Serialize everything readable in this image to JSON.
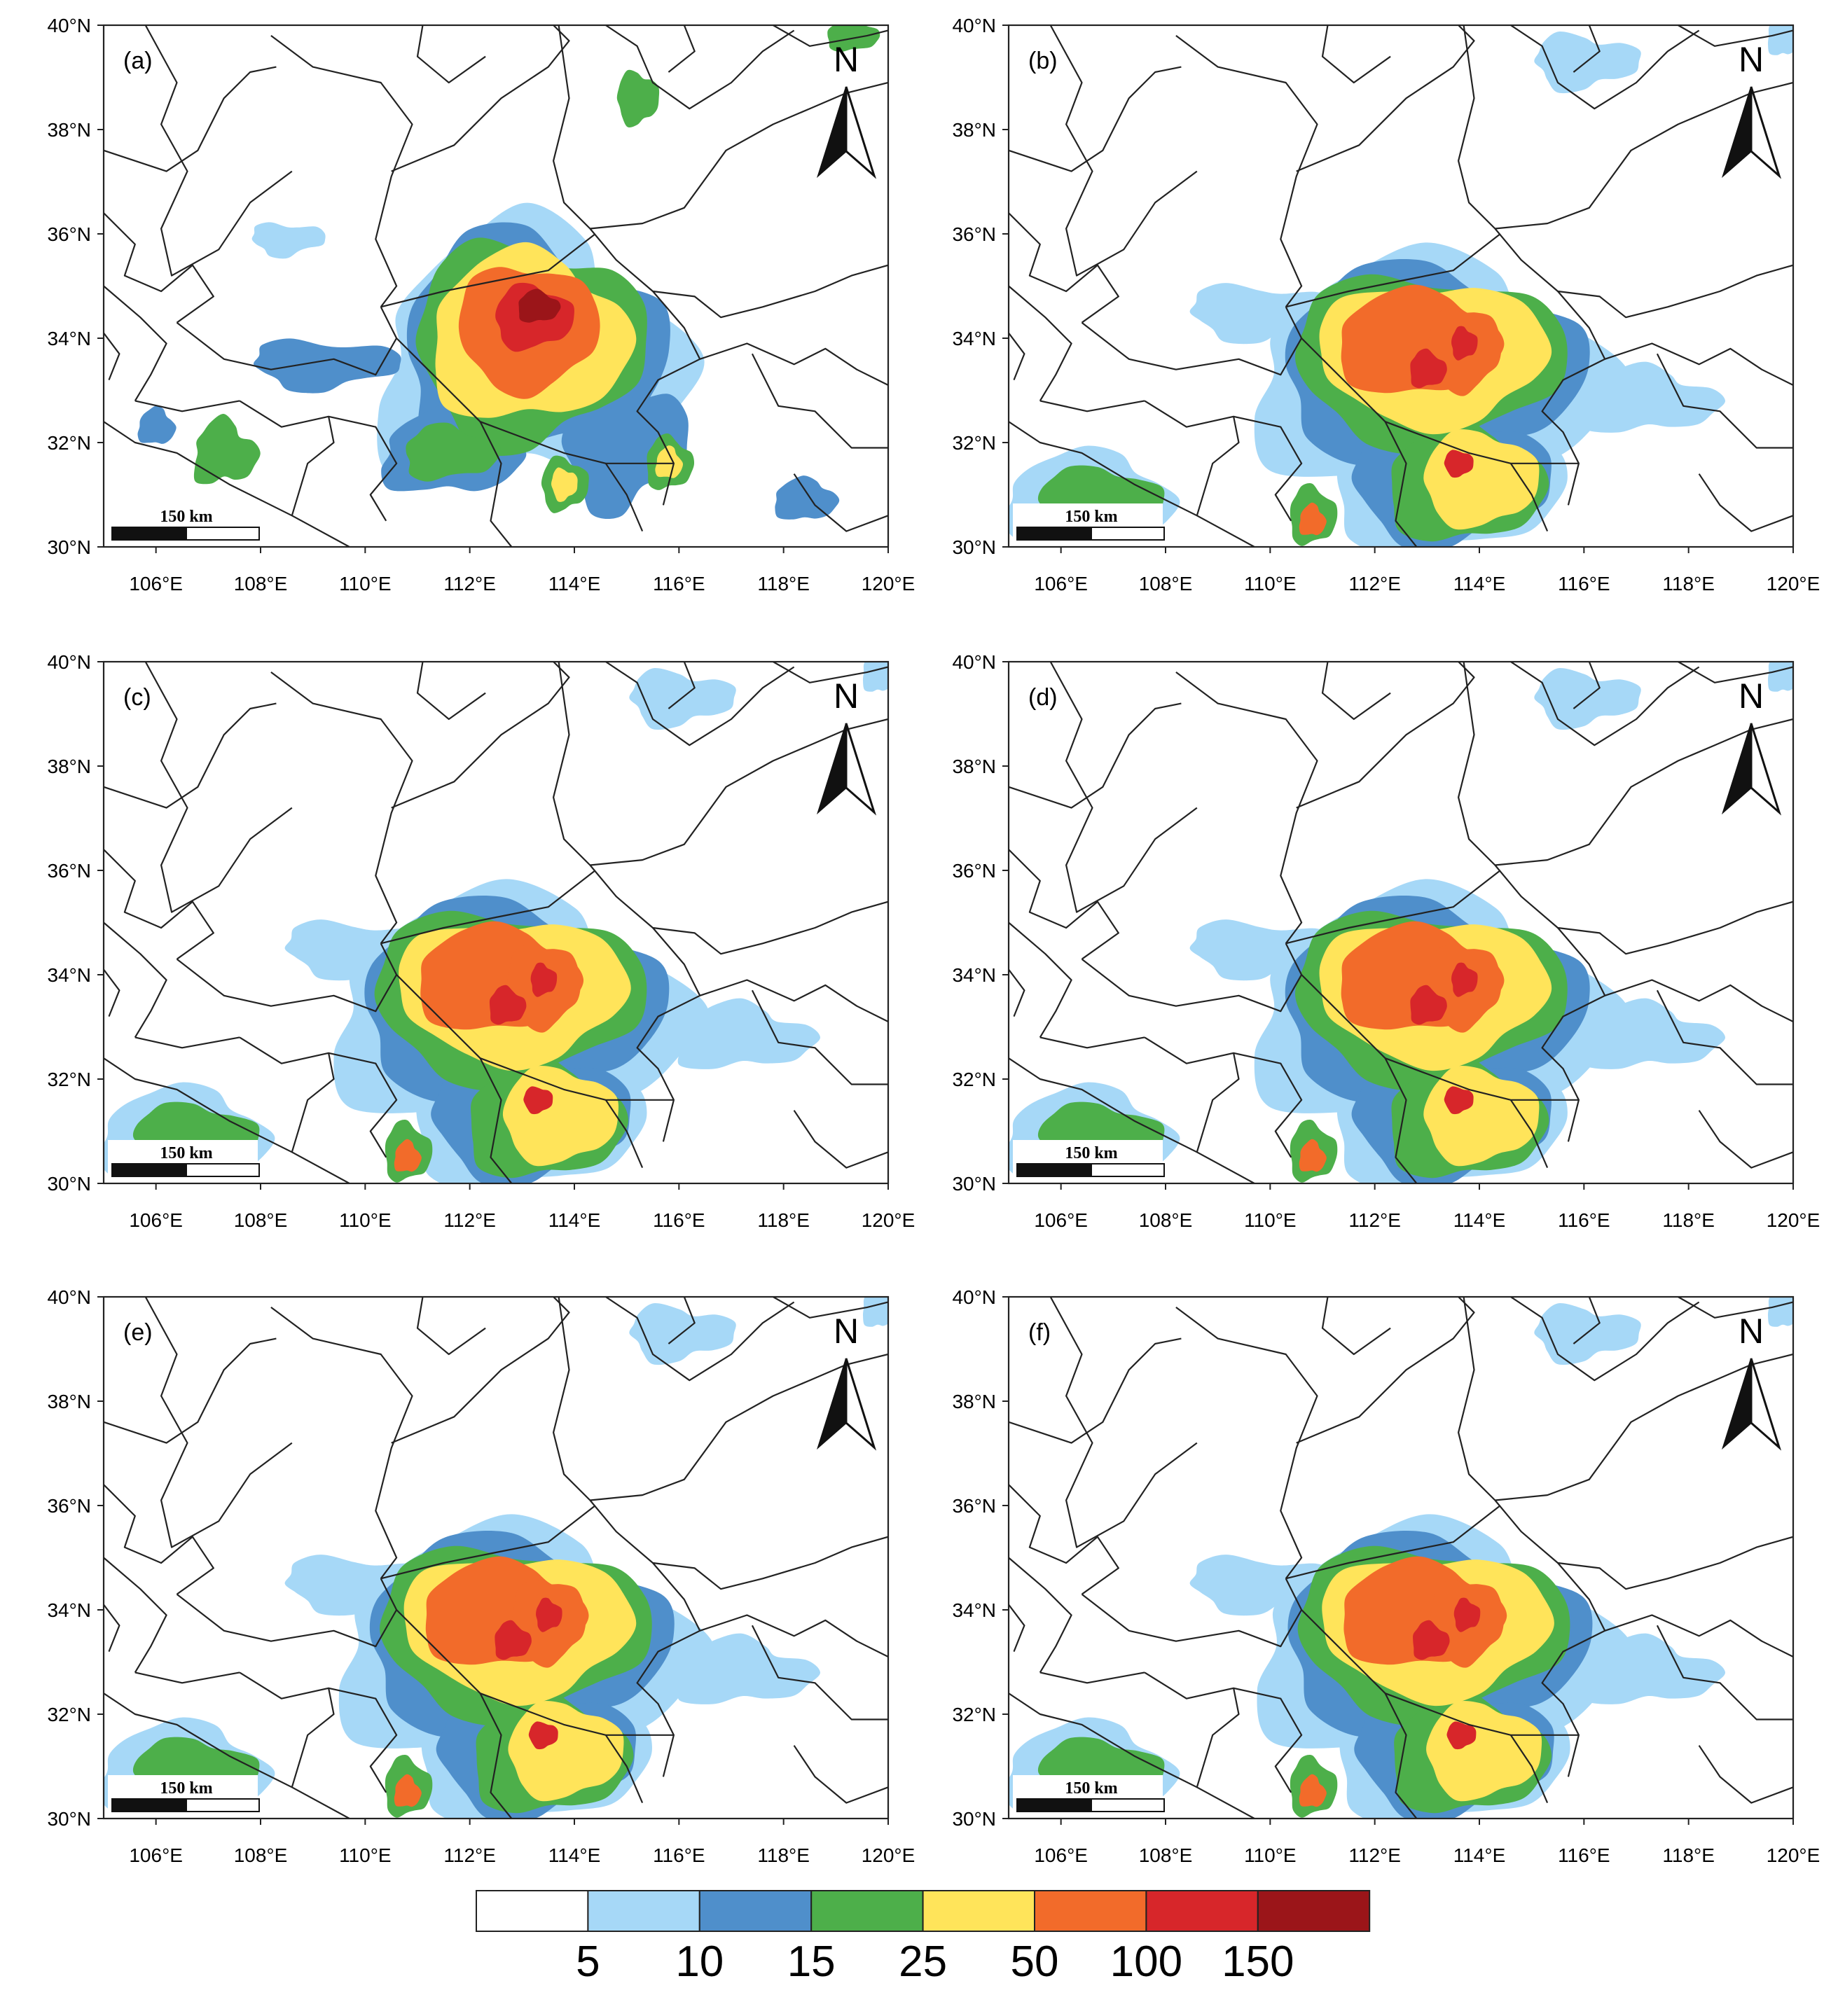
{
  "axes": {
    "lon_ticks": [
      "106°E",
      "108°E",
      "110°E",
      "112°E",
      "114°E",
      "116°E",
      "118°E",
      "120°E"
    ],
    "lat_ticks": [
      "30°N",
      "32°N",
      "34°N",
      "36°N",
      "38°N",
      "40°N"
    ],
    "lon_range": [
      105,
      120
    ],
    "lat_range": [
      30,
      40
    ]
  },
  "north_label": "N",
  "scale_bar_label": "150 km",
  "panels": [
    {
      "id": "a",
      "label": "(a)"
    },
    {
      "id": "b",
      "label": "(b)"
    },
    {
      "id": "c",
      "label": "(c)"
    },
    {
      "id": "d",
      "label": "(d)"
    },
    {
      "id": "e",
      "label": "(e)"
    },
    {
      "id": "f",
      "label": "(f)"
    }
  ],
  "colorbar": {
    "labels": [
      "5",
      "10",
      "15",
      "25",
      "50",
      "100",
      "150"
    ],
    "colors": [
      "#ffffff",
      "#a6d8f7",
      "#4f8fcb",
      "#4daf4a",
      "#ffe45a",
      "#f26b2a",
      "#d7262a",
      "#9b1519"
    ]
  },
  "colors": {
    "lvl1": "#a6d8f7",
    "lvl2": "#4f8fcb",
    "lvl3": "#4daf4a",
    "lvl4": "#ffe45a",
    "lvl5": "#f26b2a",
    "lvl6": "#d7262a",
    "lvl7": "#9b1519"
  }
}
